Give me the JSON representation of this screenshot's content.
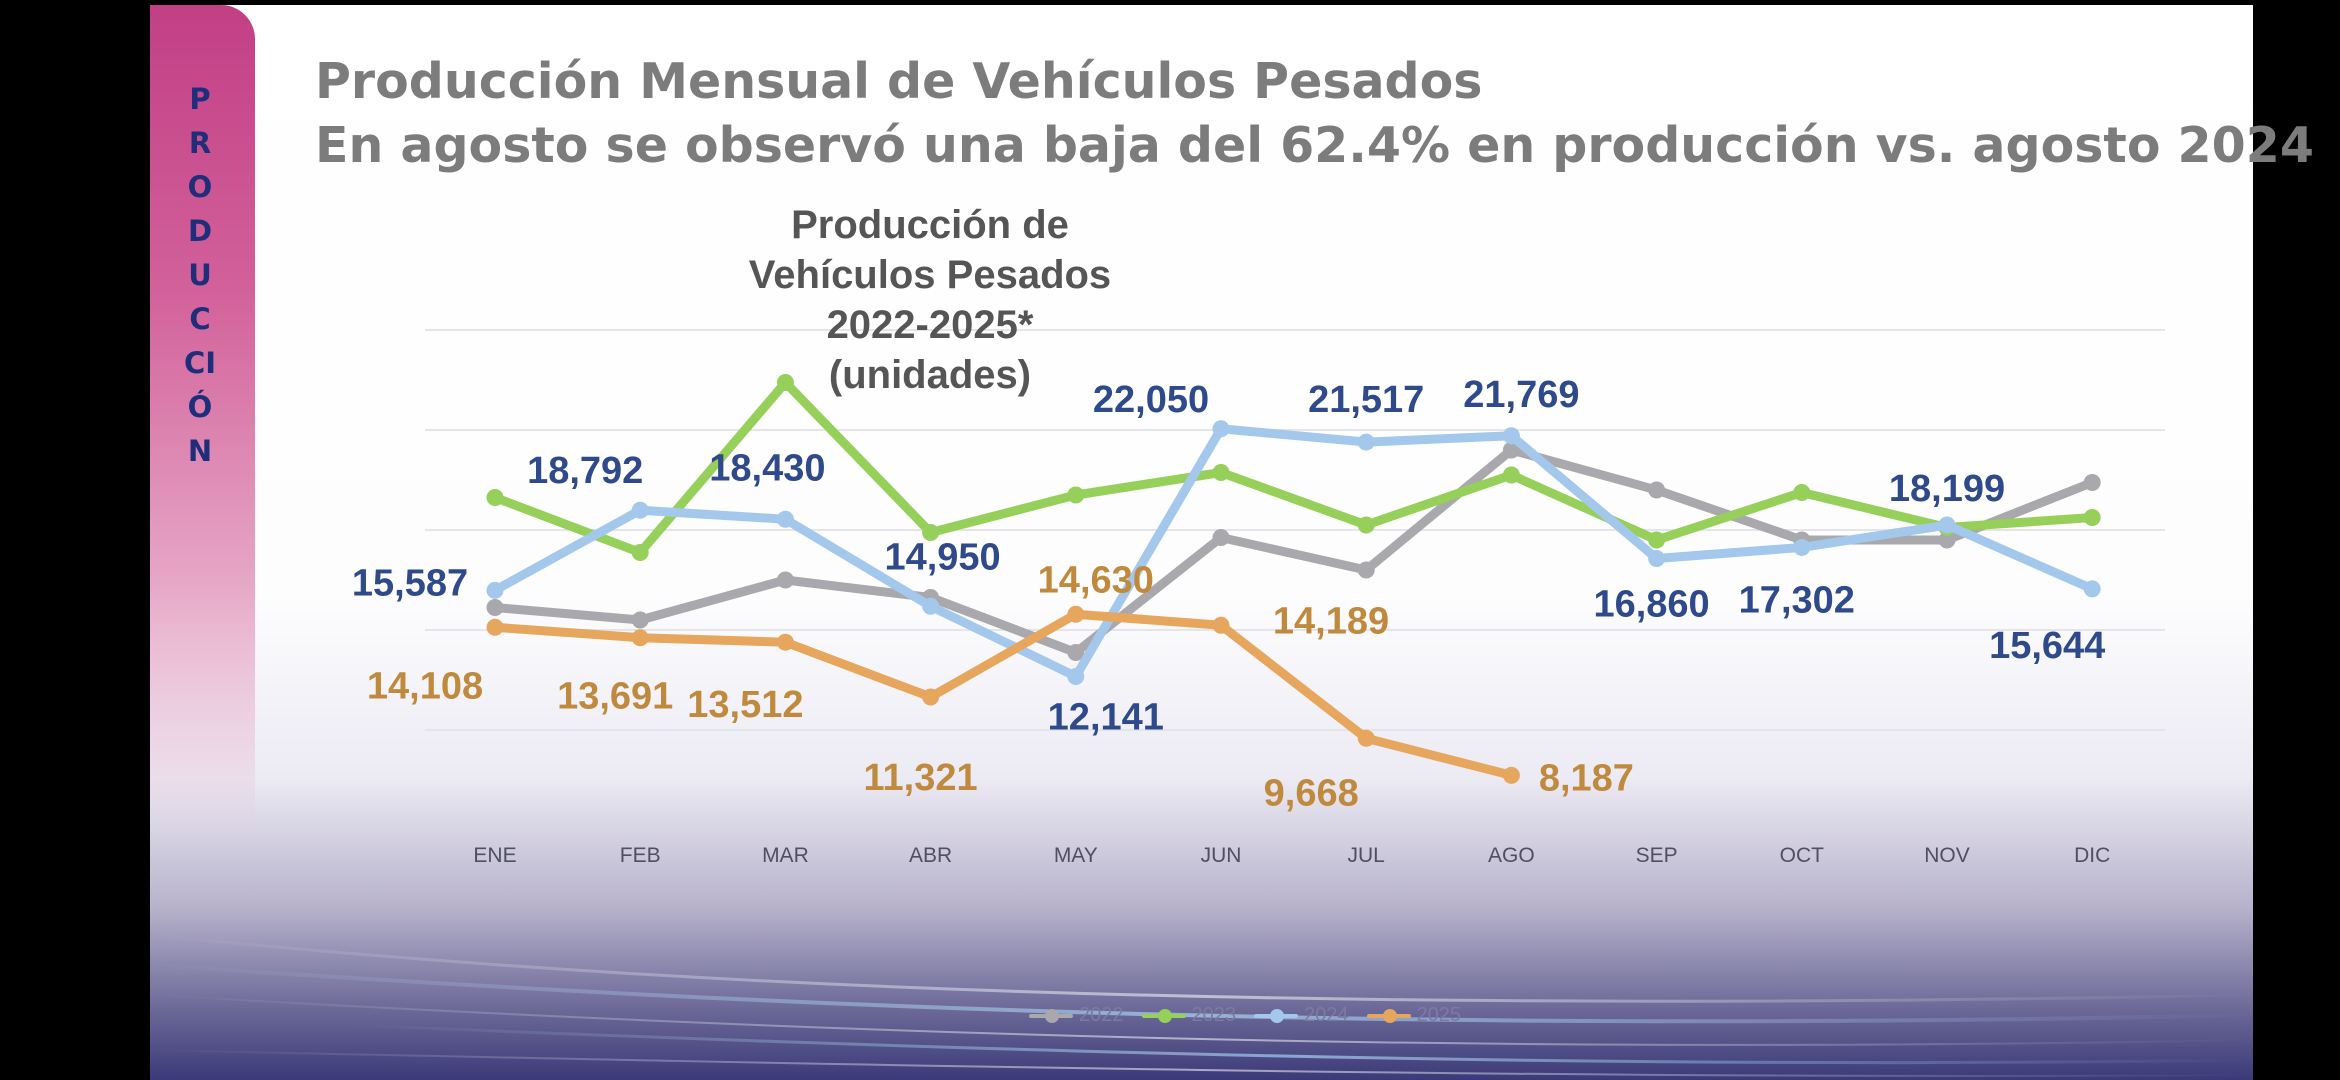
{
  "slide": {
    "section_label": "PRODUCCIÓN",
    "title": "Producción Mensual de Vehículos Pesados",
    "subtitle": "En agosto se observó una baja del 62.4% en producción vs. agosto 2024"
  },
  "colors": {
    "section_tab": "#c23f86",
    "section_label": "#1f2e7a",
    "title_text": "#7c7c7c",
    "label_blue": "#2f4a8a",
    "label_orange": "#c08a3e"
  },
  "chart_data": {
    "type": "line",
    "title": "Producción de Vehículos Pesados\n2022-2025* (unidades)",
    "categories": [
      "ENE",
      "FEB",
      "MAR",
      "ABR",
      "MAY",
      "JUN",
      "JUL",
      "AGO",
      "SEP",
      "OCT",
      "NOV",
      "DIC"
    ],
    "ylim": [
      6000,
      26000
    ],
    "grid": true,
    "legend_position": "bottom-center",
    "series": [
      {
        "name": "2022",
        "color": "#a8a8ad",
        "values": [
          14900,
          14400,
          16000,
          15300,
          13100,
          17700,
          16400,
          21200,
          19600,
          17600,
          17600,
          19900
        ],
        "data_labels": [
          null,
          null,
          null,
          null,
          null,
          null,
          null,
          null,
          null,
          null,
          null,
          null
        ]
      },
      {
        "name": "2023",
        "color": "#96cf5a",
        "values": [
          19300,
          17100,
          23900,
          17900,
          19400,
          20300,
          18200,
          20200,
          17600,
          19500,
          18100,
          18500
        ],
        "data_labels": [
          null,
          null,
          null,
          null,
          null,
          null,
          null,
          null,
          null,
          null,
          null,
          null
        ]
      },
      {
        "name": "2024",
        "color": "#a3c8ec",
        "values": [
          15587,
          18792,
          18430,
          14950,
          12141,
          22050,
          21517,
          21769,
          16860,
          17302,
          18199,
          15644
        ],
        "data_labels": [
          "15,587",
          "18,792",
          "18,430",
          "14,950",
          "12,141",
          "22,050",
          "21,517",
          "21,769",
          "16,860",
          "17,302",
          "18,199",
          "15,644"
        ]
      },
      {
        "name": "2025",
        "color": "#e6a65e",
        "values": [
          14108,
          13691,
          13512,
          11321,
          14630,
          14189,
          9668,
          8187,
          null,
          null,
          null,
          null
        ],
        "data_labels": [
          "14,108",
          "13,691",
          "13,512",
          "11,321",
          "14,630",
          "14,189",
          "9,668",
          "8,187",
          null,
          null,
          null,
          null
        ]
      }
    ]
  }
}
